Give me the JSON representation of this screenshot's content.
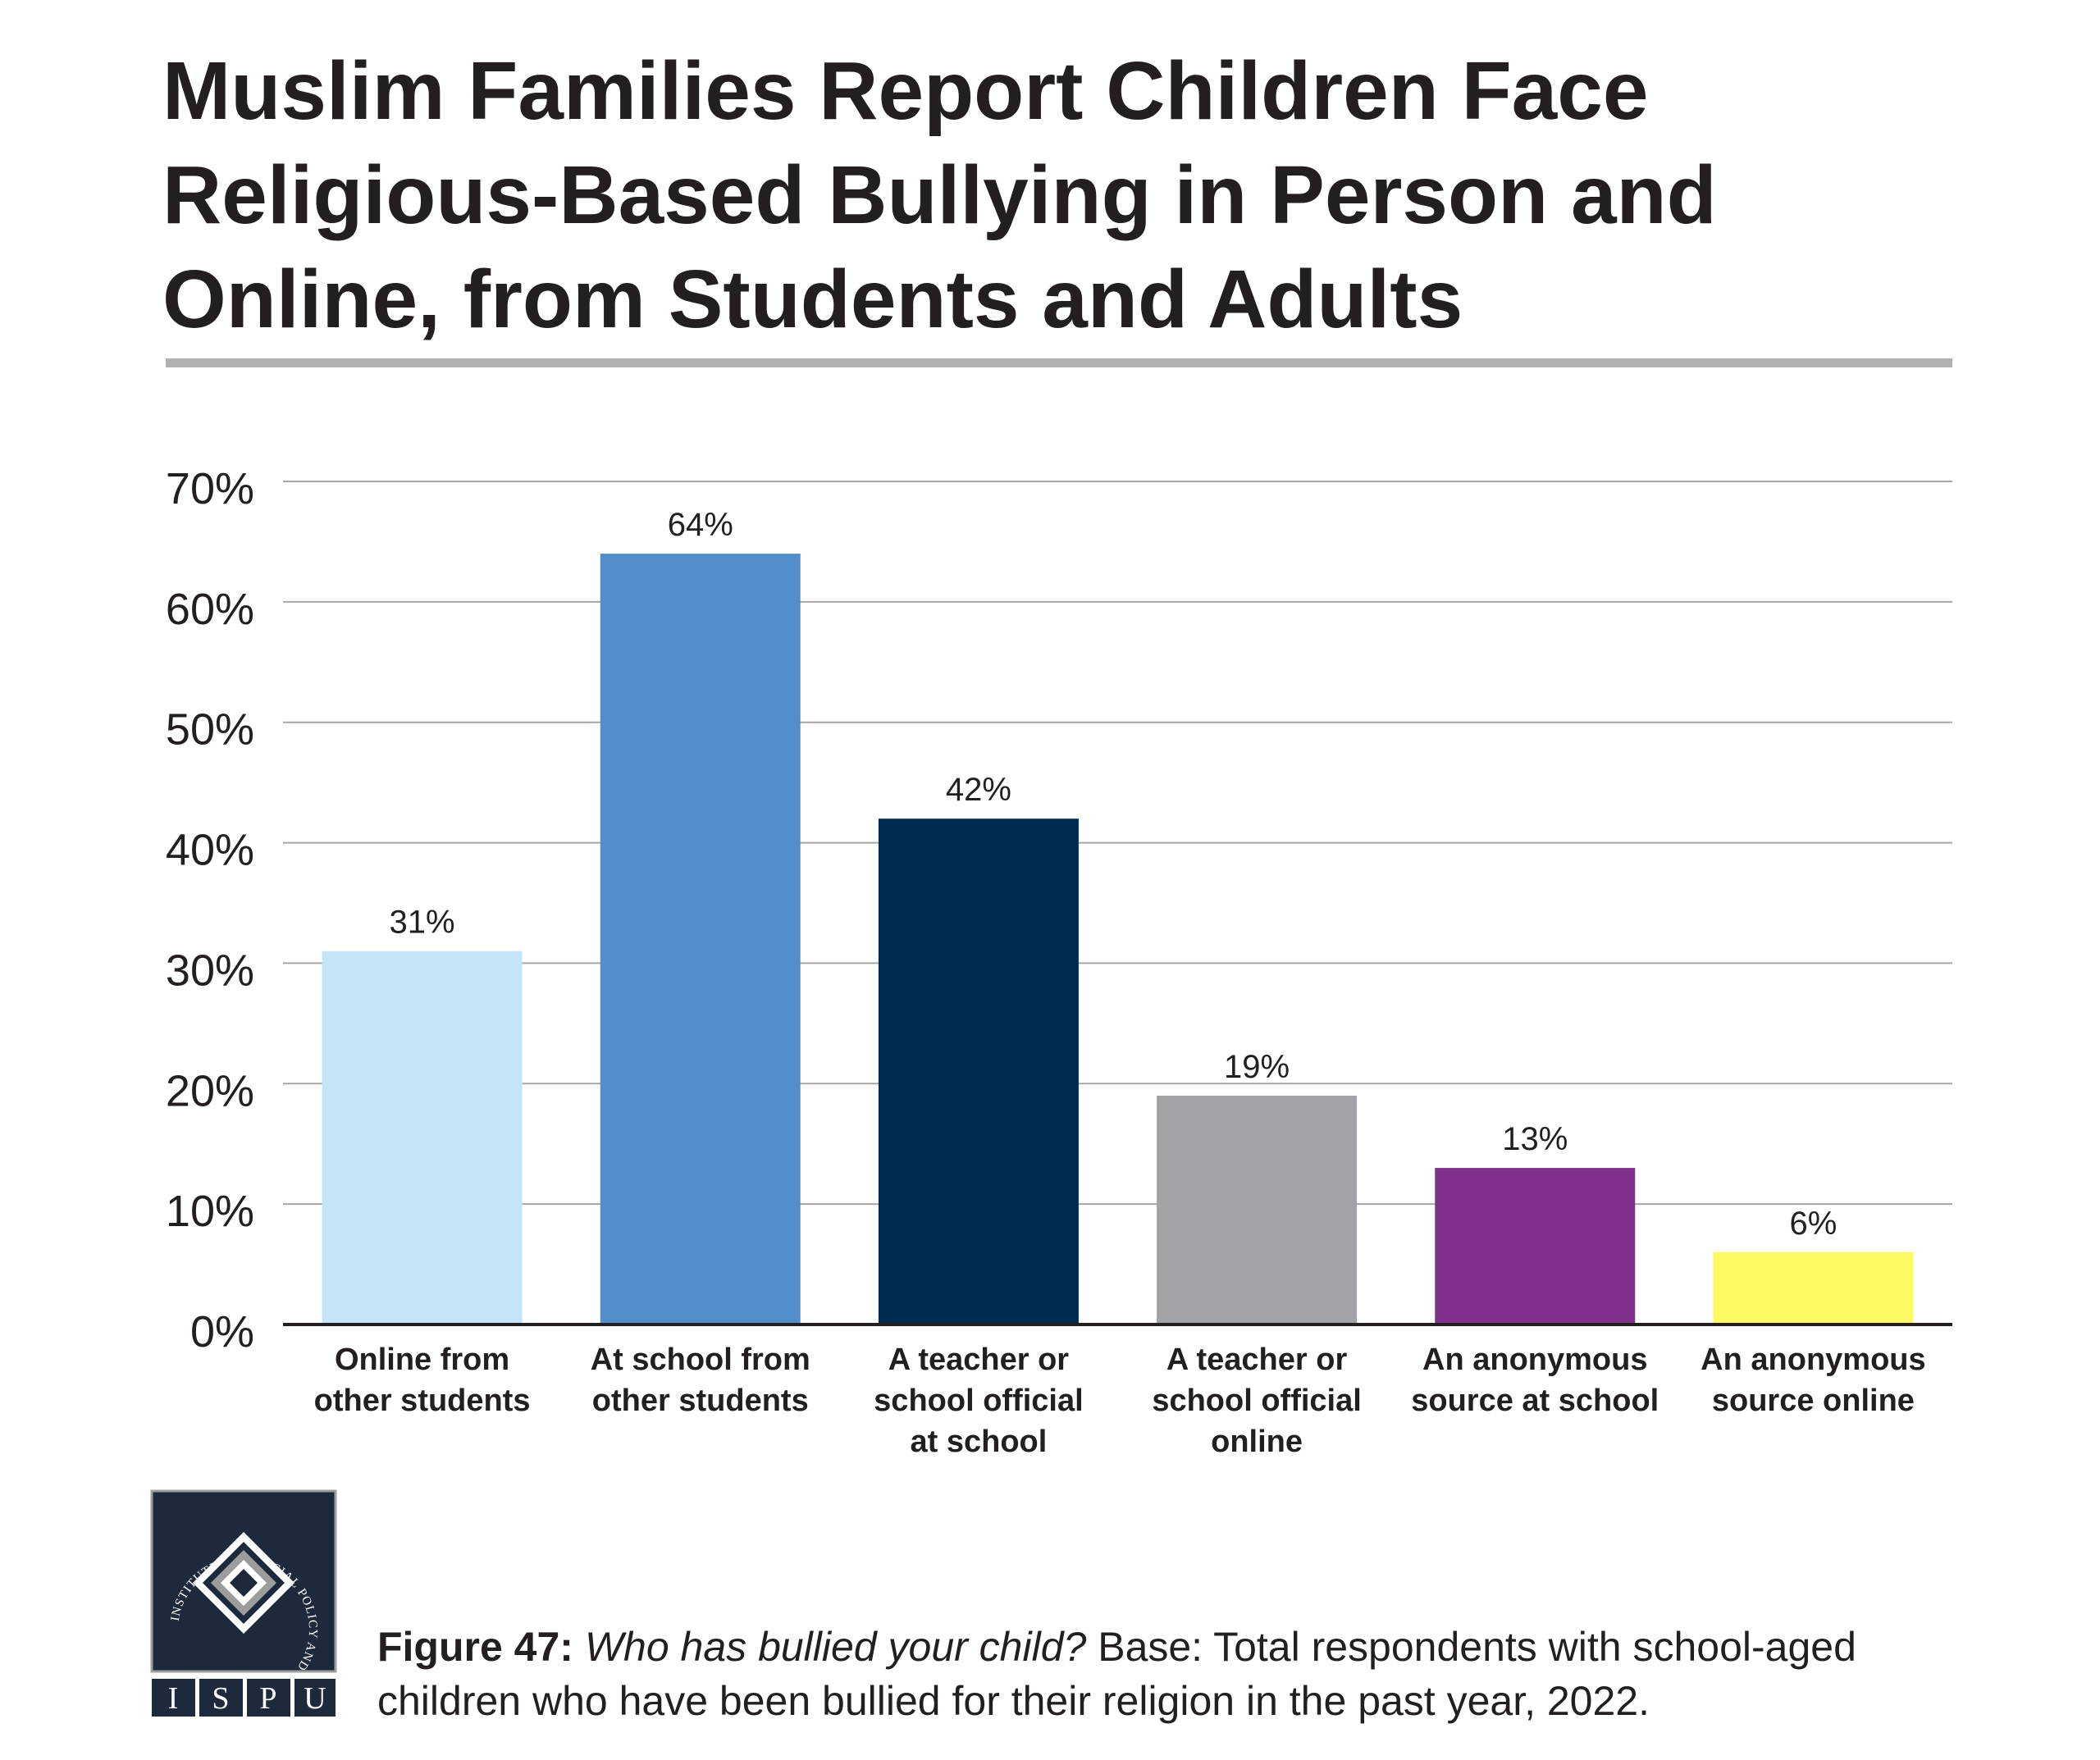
{
  "title": "Muslim Families Report Children Face Religious-Based Bullying in Person and Online, from Students and Adults",
  "chart_data": {
    "type": "bar",
    "categories": [
      [
        "Online from",
        "other students"
      ],
      [
        "At school from",
        "other students"
      ],
      [
        "A teacher or",
        "school official",
        "at school"
      ],
      [
        "A teacher or",
        "school official",
        "online"
      ],
      [
        "An anonymous",
        "source at school"
      ],
      [
        "An anonymous",
        "source online"
      ]
    ],
    "values": [
      31,
      64,
      42,
      19,
      13,
      6
    ],
    "data_labels": [
      "31%",
      "64%",
      "42%",
      "19%",
      "13%",
      "6%"
    ],
    "colors": [
      "#c3e5f7",
      "#528ec9",
      "#002b50",
      "#a1a3a6",
      "#80318c",
      "#fcfa61"
    ],
    "ylim": [
      0,
      70
    ],
    "yticks": [
      0,
      10,
      20,
      30,
      40,
      50,
      60,
      70
    ],
    "ytick_labels": [
      "0%",
      "10%",
      "20%",
      "30%",
      "40%",
      "50%",
      "60%",
      "70%"
    ],
    "grid": true
  },
  "logo": {
    "ring_text": "INSTITUTE FOR SOCIAL POLICY AND UNDERSTANDING",
    "letters": [
      "I",
      "S",
      "P",
      "U"
    ],
    "colors": {
      "navy": "#1d2a3c",
      "gray": "#9c9c9c",
      "white": "#ffffff"
    }
  },
  "caption": {
    "figure_label": "Figure 47:",
    "question": "Who has bullied your child?",
    "base_text": "Base: Total respondents with school-aged children who have been bullied for their religion in the past year, 2022."
  }
}
